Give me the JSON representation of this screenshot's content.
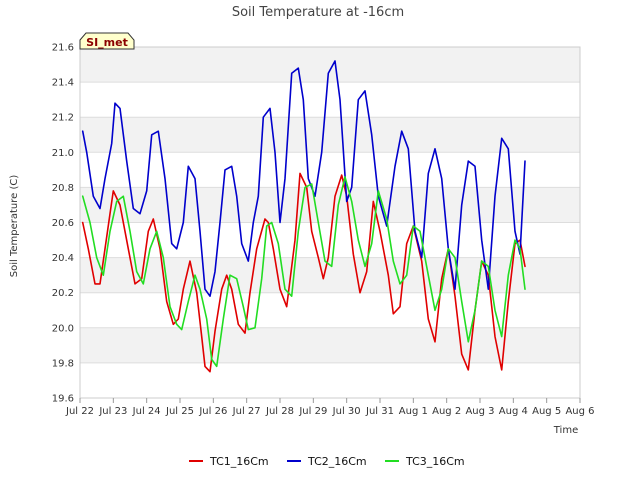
{
  "chart_data": {
    "type": "line",
    "title": "Soil Temperature at -16cm",
    "xlabel": "Time",
    "ylabel": "Soil Temperature (C)",
    "site_label": "SI_met",
    "ylim": [
      19.6,
      21.6
    ],
    "y_ticks": [
      19.6,
      19.8,
      20.0,
      20.2,
      20.4,
      20.6,
      20.8,
      21.0,
      21.2,
      21.4,
      21.6
    ],
    "y_tick_labels": [
      "19.6",
      "19.8",
      "20.0",
      "20.2",
      "20.4",
      "20.6",
      "20.8",
      "21.0",
      "21.2",
      "21.4",
      "21.6"
    ],
    "xlim": [
      22,
      37
    ],
    "x_ticks": [
      22,
      23,
      24,
      25,
      26,
      27,
      28,
      29,
      30,
      31,
      32,
      33,
      34,
      35,
      36,
      37
    ],
    "x_tick_labels": [
      "Jul 22",
      "Jul 23",
      "Jul 24",
      "Jul 25",
      "Jul 26",
      "Jul 27",
      "Jul 28",
      "Jul 29",
      "Jul 30",
      "Jul 31",
      "Aug 1",
      "Aug 2",
      "Aug 3",
      "Aug 4",
      "Aug 5",
      "Aug 6"
    ],
    "grid": true,
    "background_bands": true,
    "legend_position": "bottom",
    "series": [
      {
        "name": "TC1_16Cm",
        "color": "#e00000",
        "x": [
          22.08,
          22.25,
          22.45,
          22.6,
          22.9,
          23.0,
          23.2,
          23.45,
          23.65,
          23.85,
          24.05,
          24.2,
          24.4,
          24.6,
          24.8,
          24.95,
          25.1,
          25.3,
          25.5,
          25.65,
          25.75,
          25.9,
          26.05,
          26.25,
          26.4,
          26.55,
          26.75,
          26.95,
          27.1,
          27.3,
          27.55,
          27.65,
          27.8,
          28.0,
          28.2,
          28.45,
          28.6,
          28.8,
          28.95,
          29.15,
          29.3,
          29.45,
          29.65,
          29.85,
          30.0,
          30.2,
          30.4,
          30.6,
          30.8,
          31.0,
          31.25,
          31.4,
          31.6,
          31.8,
          32.0,
          32.25,
          32.45,
          32.65,
          32.85,
          33.05,
          33.25,
          33.45,
          33.65,
          33.85,
          34.05,
          34.25,
          34.45,
          34.65,
          34.85,
          35.05,
          35.2,
          35.35
        ],
        "y": [
          20.6,
          20.45,
          20.25,
          20.25,
          20.65,
          20.78,
          20.7,
          20.45,
          20.25,
          20.28,
          20.55,
          20.62,
          20.45,
          20.15,
          20.02,
          20.05,
          20.22,
          20.38,
          20.2,
          19.95,
          19.78,
          19.75,
          19.98,
          20.22,
          20.3,
          20.22,
          20.02,
          19.97,
          20.2,
          20.45,
          20.62,
          20.6,
          20.45,
          20.22,
          20.12,
          20.5,
          20.88,
          20.8,
          20.55,
          20.4,
          20.28,
          20.4,
          20.75,
          20.87,
          20.75,
          20.42,
          20.2,
          20.32,
          20.72,
          20.55,
          20.3,
          20.08,
          20.12,
          20.48,
          20.58,
          20.38,
          20.05,
          19.92,
          20.28,
          20.45,
          20.18,
          19.85,
          19.76,
          20.1,
          20.38,
          20.3,
          19.95,
          19.76,
          20.15,
          20.48,
          20.5,
          20.35
        ]
      },
      {
        "name": "TC2_16Cm",
        "color": "#0000cc",
        "x": [
          22.08,
          22.2,
          22.4,
          22.6,
          22.75,
          22.95,
          23.05,
          23.2,
          23.4,
          23.6,
          23.8,
          24.0,
          24.15,
          24.35,
          24.55,
          24.75,
          24.9,
          25.1,
          25.25,
          25.45,
          25.6,
          25.75,
          25.9,
          26.05,
          26.2,
          26.35,
          26.55,
          26.7,
          26.85,
          27.05,
          27.2,
          27.35,
          27.5,
          27.7,
          27.85,
          28.0,
          28.15,
          28.35,
          28.55,
          28.7,
          28.85,
          29.05,
          29.25,
          29.45,
          29.65,
          29.8,
          30.0,
          30.15,
          30.35,
          30.55,
          30.75,
          30.95,
          31.2,
          31.45,
          31.65,
          31.85,
          32.05,
          32.25,
          32.45,
          32.65,
          32.85,
          33.05,
          33.25,
          33.45,
          33.65,
          33.85,
          34.05,
          34.25,
          34.45,
          34.65,
          34.85,
          35.05,
          35.2,
          35.35
        ],
        "y": [
          21.12,
          21.0,
          20.75,
          20.68,
          20.85,
          21.05,
          21.28,
          21.25,
          20.95,
          20.68,
          20.65,
          20.78,
          21.1,
          21.12,
          20.85,
          20.48,
          20.45,
          20.6,
          20.92,
          20.85,
          20.55,
          20.22,
          20.18,
          20.32,
          20.6,
          20.9,
          20.92,
          20.75,
          20.48,
          20.38,
          20.6,
          20.75,
          21.2,
          21.25,
          21.0,
          20.6,
          20.85,
          21.45,
          21.48,
          21.3,
          20.85,
          20.75,
          21.0,
          21.45,
          21.52,
          21.3,
          20.72,
          20.8,
          21.3,
          21.35,
          21.1,
          20.75,
          20.58,
          20.92,
          21.12,
          21.02,
          20.55,
          20.4,
          20.88,
          21.02,
          20.85,
          20.45,
          20.22,
          20.7,
          20.95,
          20.92,
          20.5,
          20.22,
          20.75,
          21.08,
          21.02,
          20.55,
          20.42,
          20.95
        ]
      },
      {
        "name": "TC3_16Cm",
        "color": "#22dd22",
        "x": [
          22.08,
          22.3,
          22.5,
          22.7,
          22.9,
          23.1,
          23.3,
          23.5,
          23.7,
          23.9,
          24.1,
          24.3,
          24.5,
          24.7,
          24.9,
          25.05,
          25.25,
          25.45,
          25.6,
          25.8,
          25.95,
          26.1,
          26.3,
          26.5,
          26.7,
          26.9,
          27.05,
          27.25,
          27.45,
          27.6,
          27.75,
          27.95,
          28.15,
          28.35,
          28.55,
          28.75,
          28.95,
          29.15,
          29.35,
          29.55,
          29.75,
          29.95,
          30.15,
          30.35,
          30.55,
          30.75,
          30.95,
          31.2,
          31.4,
          31.6,
          31.8,
          32.0,
          32.2,
          32.45,
          32.65,
          32.85,
          33.05,
          33.25,
          33.45,
          33.65,
          33.85,
          34.05,
          34.25,
          34.45,
          34.65,
          34.85,
          35.05,
          35.2,
          35.35
        ],
        "y": [
          20.75,
          20.6,
          20.4,
          20.3,
          20.55,
          20.72,
          20.75,
          20.55,
          20.32,
          20.25,
          20.45,
          20.55,
          20.4,
          20.12,
          20.02,
          19.99,
          20.15,
          20.3,
          20.22,
          20.05,
          19.82,
          19.78,
          20.05,
          20.3,
          20.28,
          20.12,
          19.99,
          20.0,
          20.28,
          20.58,
          20.6,
          20.48,
          20.22,
          20.18,
          20.55,
          20.8,
          20.82,
          20.6,
          20.38,
          20.35,
          20.7,
          20.86,
          20.72,
          20.5,
          20.35,
          20.48,
          20.78,
          20.62,
          20.38,
          20.25,
          20.3,
          20.58,
          20.55,
          20.3,
          20.1,
          20.22,
          20.45,
          20.4,
          20.15,
          19.92,
          20.1,
          20.38,
          20.35,
          20.1,
          19.95,
          20.3,
          20.5,
          20.45,
          20.22
        ]
      }
    ]
  }
}
